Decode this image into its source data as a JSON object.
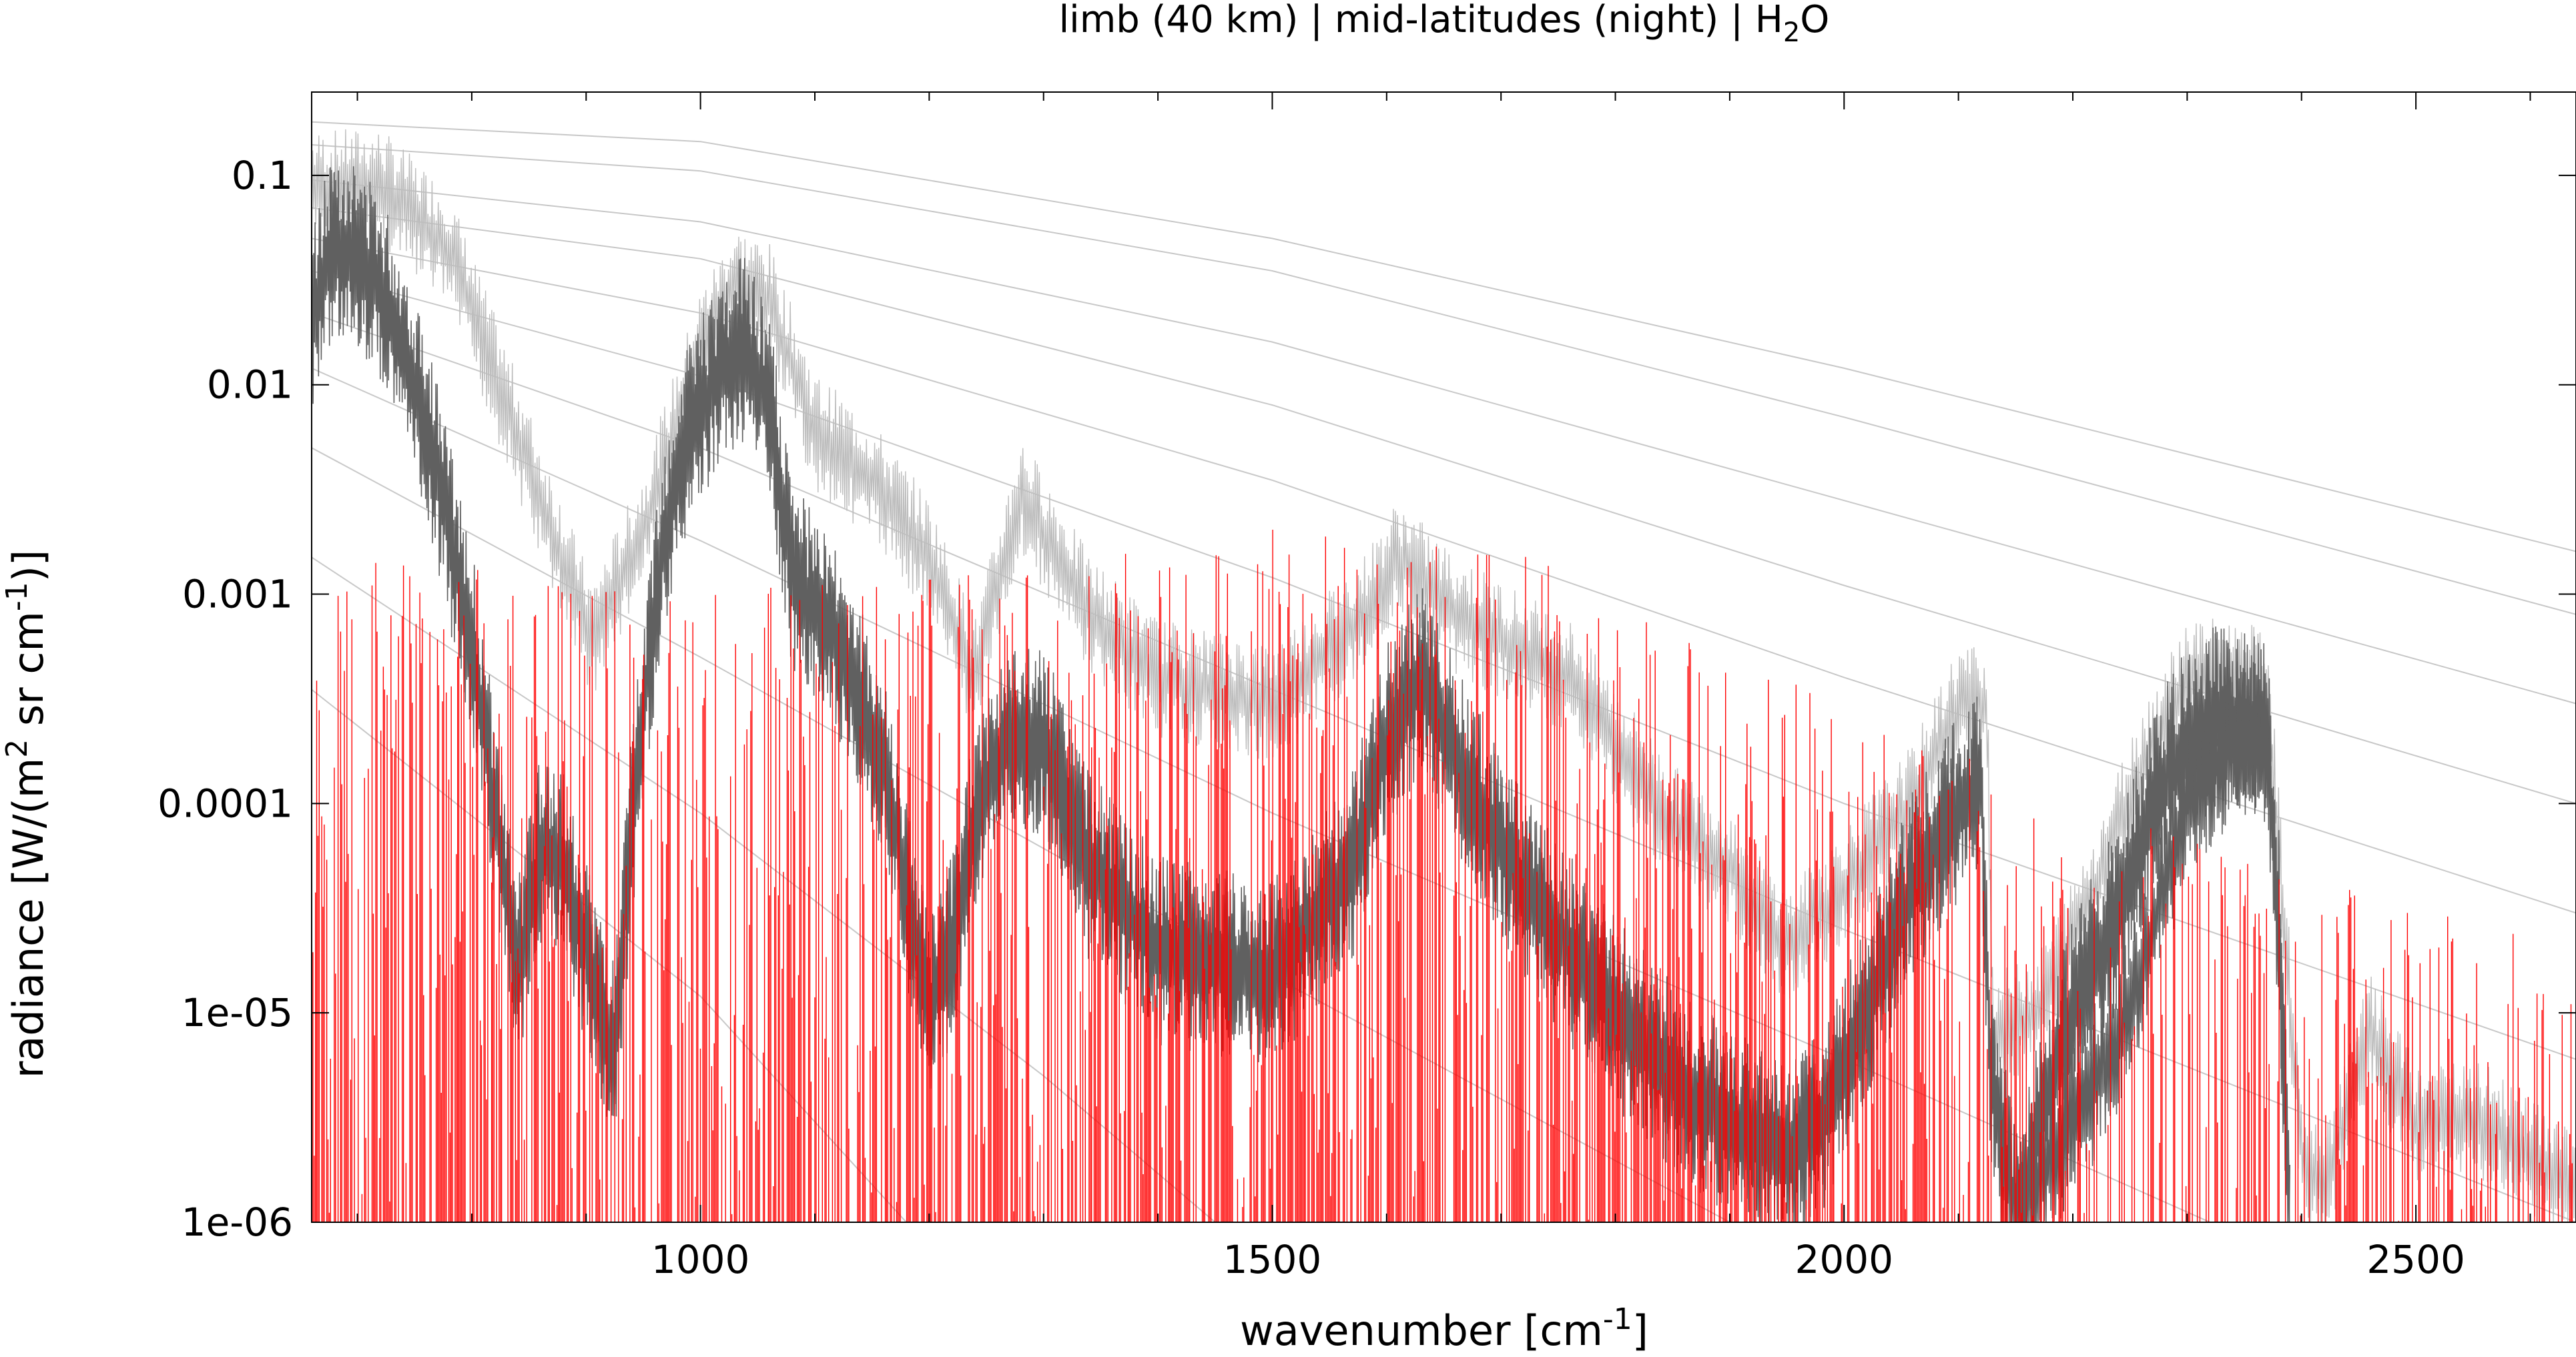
{
  "chart_data": {
    "type": "line",
    "title": {
      "main": "limb (40 km) | mid-latitudes (night) | H",
      "sub": "2",
      "tail": "O"
    },
    "xlabel": {
      "main": "wavenumber [cm",
      "sup": "-1",
      "tail": "]"
    },
    "ylabel": {
      "part1": "radiance [W/(m",
      "sup1": "2",
      "part2": " sr cm",
      "sup2": "-1",
      "part3": ")]"
    },
    "xlim": [
      660,
      2640
    ],
    "ylim": [
      1e-06,
      0.25
    ],
    "yscale": "log",
    "grid": false,
    "legend": "none",
    "x_ticks": [
      1000,
      1500,
      2000,
      2500
    ],
    "x_tick_labels": [
      "1000",
      "1500",
      "2000",
      "2500"
    ],
    "y_ticks": [
      1e-06,
      1e-05,
      0.0001,
      0.001,
      0.01,
      0.1
    ],
    "y_tick_labels": [
      "1e-06",
      "1e-05",
      "0.0001",
      "0.001",
      "0.01",
      "0.1"
    ],
    "colors": {
      "reference_curves": "#c8c8c8",
      "envelope_light": "#bdbdbd",
      "spectrum_dark": "#606060",
      "lines_red": "#ff0000"
    },
    "series": [
      {
        "kind": "reference",
        "values": [
          [
            660,
            0.18
          ],
          [
            1000,
            0.145
          ],
          [
            1500,
            0.05
          ],
          [
            2000,
            0.012
          ],
          [
            2640,
            0.0016
          ]
        ]
      },
      {
        "kind": "reference",
        "values": [
          [
            660,
            0.14
          ],
          [
            1000,
            0.105
          ],
          [
            1500,
            0.035
          ],
          [
            2000,
            0.007
          ],
          [
            2640,
            0.0008
          ]
        ]
      },
      {
        "kind": "reference",
        "values": [
          [
            660,
            0.095
          ],
          [
            1000,
            0.06
          ],
          [
            1500,
            0.016
          ],
          [
            2000,
            0.0028
          ],
          [
            2640,
            0.0003
          ]
        ]
      },
      {
        "kind": "reference",
        "values": [
          [
            660,
            0.07
          ],
          [
            1000,
            0.04
          ],
          [
            1500,
            0.008
          ],
          [
            2000,
            0.0011
          ],
          [
            2640,
            0.0001
          ]
        ]
      },
      {
        "kind": "reference",
        "values": [
          [
            660,
            0.05
          ],
          [
            1000,
            0.022
          ],
          [
            1500,
            0.0035
          ],
          [
            2000,
            0.0004
          ],
          [
            2640,
            3e-05
          ]
        ]
      },
      {
        "kind": "reference",
        "values": [
          [
            660,
            0.035
          ],
          [
            1000,
            0.011
          ],
          [
            1500,
            0.0012
          ],
          [
            2000,
            0.0001
          ],
          [
            2640,
            6e-06
          ]
        ]
      },
      {
        "kind": "reference",
        "values": [
          [
            660,
            0.022
          ],
          [
            1000,
            0.005
          ],
          [
            1500,
            0.00035
          ],
          [
            2000,
            2.5e-05
          ],
          [
            2640,
            1e-06
          ]
        ]
      },
      {
        "kind": "reference",
        "values": [
          [
            660,
            0.012
          ],
          [
            1000,
            0.0018
          ],
          [
            1500,
            9e-05
          ],
          [
            2000,
            6e-06
          ],
          [
            2320,
            1e-06
          ]
        ]
      },
      {
        "kind": "reference",
        "values": [
          [
            660,
            0.005
          ],
          [
            1000,
            0.0005
          ],
          [
            1500,
            1.5e-05
          ],
          [
            1900,
            1e-06
          ]
        ]
      },
      {
        "kind": "reference",
        "values": [
          [
            660,
            0.0015
          ],
          [
            1000,
            9e-05
          ],
          [
            1300,
            5e-06
          ],
          [
            1450,
            1e-06
          ]
        ]
      },
      {
        "kind": "reference",
        "values": [
          [
            660,
            0.00035
          ],
          [
            1000,
            1.2e-05
          ],
          [
            1180,
            1e-06
          ]
        ]
      },
      {
        "kind": "envelope",
        "values": [
          [
            660,
            0.085
          ],
          [
            720,
            0.088
          ],
          [
            780,
            0.045
          ],
          [
            850,
            0.004
          ],
          [
            905,
            0.0006
          ],
          [
            950,
            0.002
          ],
          [
            1000,
            0.015
          ],
          [
            1030,
            0.03
          ],
          [
            1060,
            0.025
          ],
          [
            1100,
            0.006
          ],
          [
            1150,
            0.0035
          ],
          [
            1200,
            0.0015
          ],
          [
            1240,
            0.0004
          ],
          [
            1280,
            0.003
          ],
          [
            1300,
            0.002
          ],
          [
            1340,
            0.0008
          ],
          [
            1400,
            0.0004
          ],
          [
            1500,
            0.0003
          ],
          [
            1580,
            0.0008
          ],
          [
            1610,
            0.0015
          ],
          [
            1660,
            0.0008
          ],
          [
            1760,
            0.0004
          ],
          [
            1850,
            8e-05
          ],
          [
            1900,
            5e-05
          ],
          [
            1950,
            2e-05
          ],
          [
            2000,
            4e-05
          ],
          [
            2060,
            0.0001
          ],
          [
            2100,
            0.0003
          ],
          [
            2125,
            0.0003
          ],
          [
            2130,
            8e-06
          ],
          [
            2170,
            1e-05
          ],
          [
            2220,
            4e-05
          ],
          [
            2260,
            0.00015
          ],
          [
            2300,
            0.0004
          ],
          [
            2340,
            0.0004
          ],
          [
            2370,
            0.00035
          ],
          [
            2400,
            2e-06
          ],
          [
            2420,
            1.5e-06
          ],
          [
            2460,
            8e-06
          ],
          [
            2500,
            3e-06
          ],
          [
            2560,
            3e-06
          ],
          [
            2600,
            2e-06
          ],
          [
            2640,
            1.5e-06
          ]
        ]
      },
      {
        "kind": "spectrum",
        "values": [
          [
            660,
            0.02
          ],
          [
            680,
            0.05
          ],
          [
            700,
            0.04
          ],
          [
            720,
            0.03
          ],
          [
            760,
            0.007
          ],
          [
            800,
            0.0006
          ],
          [
            840,
            1.5e-05
          ],
          [
            860,
            6e-05
          ],
          [
            880,
            5e-05
          ],
          [
            900,
            2e-05
          ],
          [
            925,
            6e-06
          ],
          [
            940,
            8e-05
          ],
          [
            965,
            0.0015
          ],
          [
            990,
            0.006
          ],
          [
            1020,
            0.012
          ],
          [
            1040,
            0.015
          ],
          [
            1060,
            0.008
          ],
          [
            1080,
            0.0012
          ],
          [
            1120,
            0.0006
          ],
          [
            1160,
            0.00015
          ],
          [
            1200,
            1e-05
          ],
          [
            1220,
            2e-05
          ],
          [
            1240,
            8e-05
          ],
          [
            1250,
            0.00012
          ],
          [
            1270,
            0.0002
          ],
          [
            1300,
            0.0002
          ],
          [
            1340,
            5e-05
          ],
          [
            1400,
            2e-05
          ],
          [
            1500,
            1.5e-05
          ],
          [
            1570,
            5e-05
          ],
          [
            1600,
            0.0002
          ],
          [
            1630,
            0.0004
          ],
          [
            1680,
            0.0001
          ],
          [
            1720,
            4e-05
          ],
          [
            1800,
            1e-05
          ],
          [
            1850,
            5e-06
          ],
          [
            1900,
            3e-06
          ],
          [
            1950,
            2e-06
          ],
          [
            1980,
            3e-06
          ],
          [
            2020,
            1e-05
          ],
          [
            2060,
            4e-05
          ],
          [
            2090,
            8e-05
          ],
          [
            2120,
            0.00012
          ],
          [
            2128,
            5e-06
          ],
          [
            2150,
            1e-06
          ],
          [
            2170,
            3e-06
          ],
          [
            2200,
            1e-05
          ],
          [
            2240,
            3e-05
          ],
          [
            2270,
            0.0001
          ],
          [
            2300,
            0.0002
          ],
          [
            2320,
            0.00025
          ],
          [
            2350,
            0.00025
          ],
          [
            2370,
            0.0002
          ],
          [
            2380,
            3e-05
          ],
          [
            2390,
            1e-06
          ]
        ]
      },
      {
        "kind": "lines",
        "values": [
          [
            2150,
            1e-06
          ],
          [
            2200,
            3e-06
          ],
          [
            2250,
            1e-05
          ],
          [
            2300,
            0.0001
          ],
          [
            2340,
            0.0002
          ],
          [
            2370,
            0.0002
          ],
          [
            2380,
            2e-05
          ],
          [
            2390,
            1e-06
          ]
        ]
      }
    ]
  }
}
